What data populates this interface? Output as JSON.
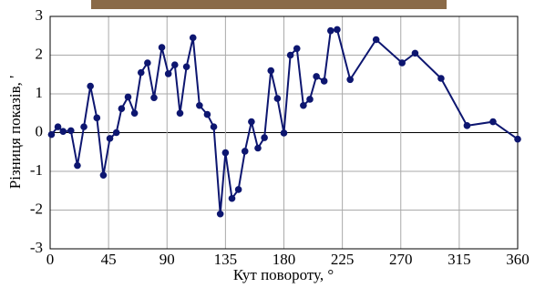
{
  "chart_data": {
    "type": "line",
    "x_label": "Кут повороту, °",
    "y_label": "Різниця показів, '",
    "x": [
      1,
      6,
      10,
      16,
      21,
      26,
      31,
      36,
      41,
      46,
      51,
      55,
      60,
      65,
      70,
      75,
      80,
      86,
      91,
      96,
      100,
      105,
      110,
      115,
      121,
      126,
      131,
      135,
      140,
      145,
      150,
      155,
      160,
      165,
      170,
      175,
      180,
      185,
      190,
      195,
      200,
      205,
      211,
      216,
      221,
      231,
      251,
      271,
      281,
      301,
      321,
      341,
      360
    ],
    "series": [
      {
        "color": "#0d1670",
        "values": [
          -0.05,
          0.15,
          0.03,
          0.05,
          -0.85,
          0.15,
          1.2,
          0.38,
          -1.1,
          -0.15,
          0.0,
          0.62,
          0.92,
          0.5,
          1.55,
          1.8,
          0.9,
          2.2,
          1.52,
          1.75,
          0.5,
          1.7,
          2.45,
          0.7,
          0.47,
          0.15,
          -2.1,
          -0.52,
          -1.7,
          -1.47,
          -0.48,
          0.28,
          -0.4,
          -0.13,
          1.6,
          0.88,
          -0.01,
          2.0,
          2.17,
          0.7,
          0.86,
          1.45,
          1.33,
          2.63,
          2.66,
          1.37,
          2.4,
          1.8,
          2.05,
          1.4,
          0.18,
          0.28,
          -0.17
        ]
      }
    ],
    "xlim": [
      0,
      360
    ],
    "xticks": [
      0,
      45,
      90,
      135,
      180,
      225,
      270,
      315,
      360
    ],
    "ylim": [
      -3,
      3
    ],
    "yticks": [
      -3,
      -2,
      -1,
      0,
      1,
      2,
      3
    ],
    "grid": true
  }
}
